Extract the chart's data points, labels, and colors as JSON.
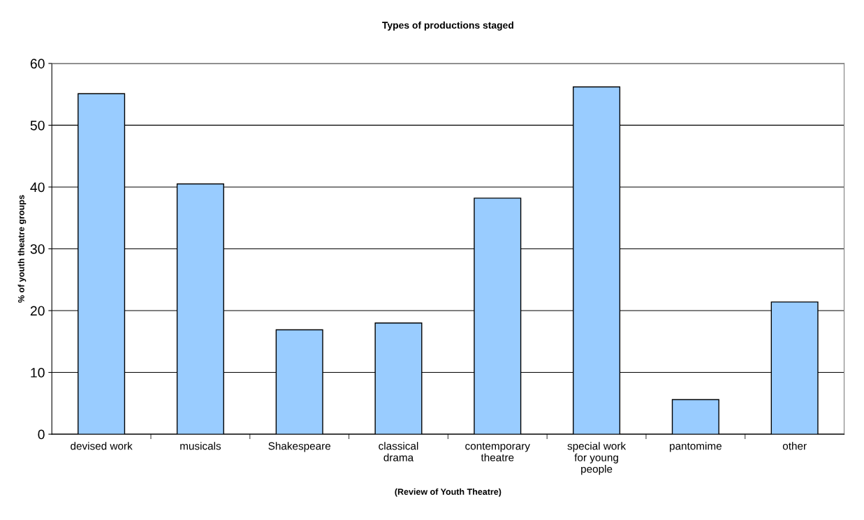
{
  "chart_data": {
    "type": "bar",
    "title": "Types of productions staged",
    "categories": [
      "devised work",
      "musicals",
      "Shakespeare",
      "classical\ndrama",
      "contemporary\ntheatre",
      "special work\nfor young\npeople",
      "pantomime",
      "other"
    ],
    "values": [
      55.1,
      40.5,
      16.9,
      18.0,
      38.2,
      56.2,
      5.6,
      21.4
    ],
    "color": "#99ccff",
    "ylabel": "% of youth theatre groups",
    "xlabel": "(Review of Youth Theatre)",
    "ylim": [
      0,
      60
    ],
    "yticks": [
      0,
      10,
      20,
      30,
      40,
      50,
      60
    ],
    "grid": "y",
    "legend": false
  }
}
